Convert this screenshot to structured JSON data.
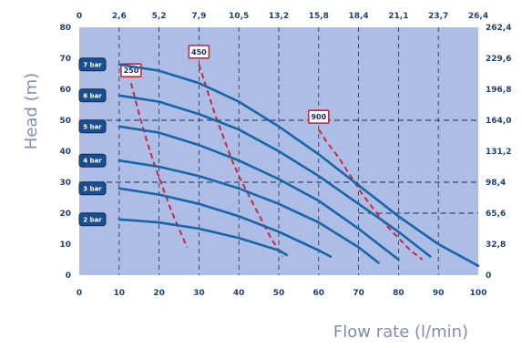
{
  "chart_data": {
    "type": "line",
    "xlabel": "Flow rate (l/min)",
    "ylabel": "Head (m)",
    "xlim": [
      0,
      100
    ],
    "ylim": [
      0,
      80
    ],
    "x_ticks": [
      "0",
      "10",
      "20",
      "30",
      "40",
      "50",
      "60",
      "70",
      "80",
      "90",
      "100"
    ],
    "y_ticks": [
      "0",
      "10",
      "20",
      "30",
      "40",
      "50",
      "60",
      "70",
      "80"
    ],
    "top_ticks": [
      "0",
      "2,6",
      "5,2",
      "7,9",
      "10,5",
      "13,2",
      "15,8",
      "18,4",
      "21,1",
      "23,7",
      "26,4"
    ],
    "right_ticks": [
      "0",
      "32,8",
      "65,6",
      "98,4",
      "131,2",
      "164,0",
      "196,8",
      "229,6",
      "262,4"
    ],
    "grid": true,
    "series": [
      {
        "name": "2 bar",
        "x": [
          10,
          20,
          30,
          40,
          50,
          52
        ],
        "y": [
          18,
          17,
          15,
          12,
          8,
          6.5
        ]
      },
      {
        "name": "3 bar",
        "x": [
          10,
          20,
          30,
          40,
          50,
          60,
          63
        ],
        "y": [
          28,
          26,
          23,
          19,
          14,
          8,
          6
        ]
      },
      {
        "name": "4 bar",
        "x": [
          10,
          20,
          30,
          40,
          50,
          60,
          70,
          75
        ],
        "y": [
          37,
          35,
          32,
          28,
          23,
          17,
          9,
          4
        ]
      },
      {
        "name": "5 bar",
        "x": [
          10,
          20,
          30,
          40,
          50,
          60,
          70,
          80
        ],
        "y": [
          48,
          46,
          42,
          37,
          31,
          24,
          15,
          5
        ]
      },
      {
        "name": "6 bar",
        "x": [
          10,
          20,
          30,
          40,
          50,
          60,
          70,
          80,
          88
        ],
        "y": [
          58,
          56,
          52,
          47,
          40,
          32,
          23,
          14,
          6
        ]
      },
      {
        "name": "7 bar",
        "x": [
          10,
          20,
          30,
          40,
          50,
          60,
          70,
          80,
          90,
          100
        ],
        "y": [
          68,
          66,
          62,
          56,
          48,
          39,
          29,
          19,
          10,
          3
        ]
      }
    ],
    "orifice_curves": [
      {
        "name": "250",
        "x": [
          13,
          15,
          17,
          19,
          21,
          23,
          25,
          27
        ],
        "y": [
          62,
          52,
          43,
          35,
          28,
          21,
          15,
          9
        ]
      },
      {
        "name": "450",
        "x": [
          30,
          32,
          34,
          36,
          38,
          40,
          42,
          44,
          46,
          48,
          51
        ],
        "y": [
          68,
          60,
          52,
          45,
          38,
          32,
          27,
          22,
          17,
          12,
          6
        ]
      },
      {
        "name": "900",
        "x": [
          60,
          62,
          65,
          68,
          71,
          74,
          77,
          80,
          83,
          86
        ],
        "y": [
          47,
          43,
          38,
          32,
          26,
          21,
          16,
          12,
          8,
          5
        ]
      }
    ],
    "colors": {
      "background": "#aebde6",
      "curve": "#1665a8",
      "orifice": "#c8283c",
      "label_box": "#1a4f8f",
      "tick_text": "#1e3f7a",
      "axis_title": "#7d8db8"
    }
  }
}
